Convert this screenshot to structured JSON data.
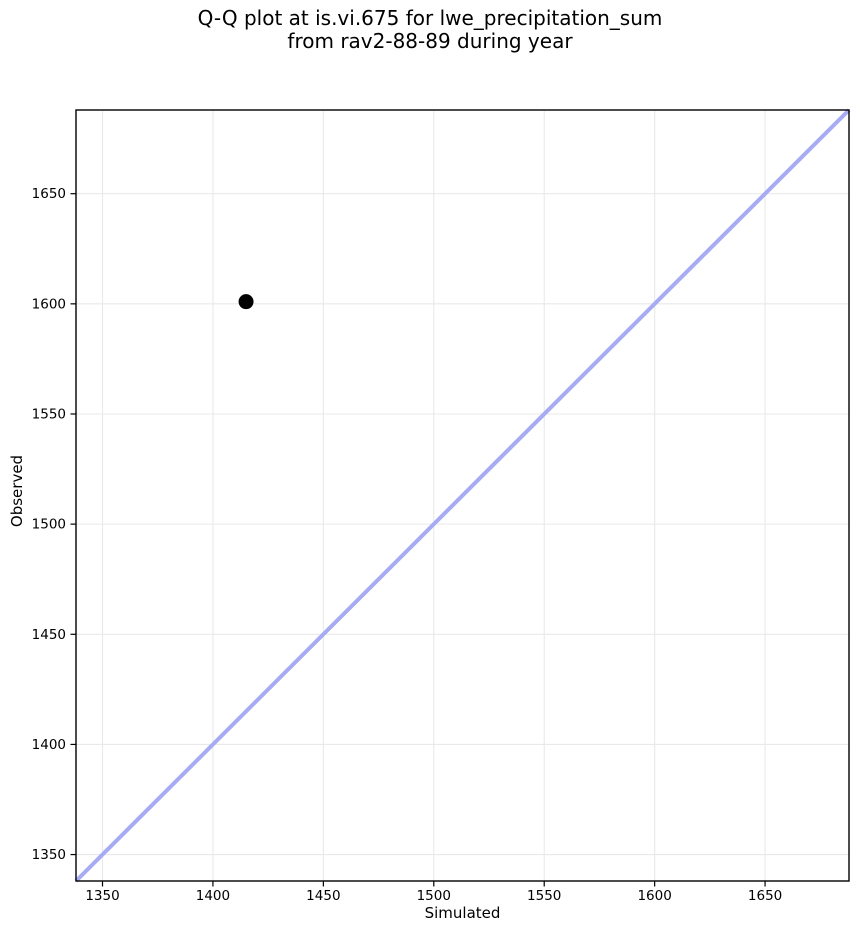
{
  "figure": {
    "title_lines": [
      "Q-Q plot at is.vi.675 for lwe_precipitation_sum",
      "from rav2-88-89 during year"
    ]
  },
  "chart_data": {
    "type": "scatter",
    "title": "Q-Q plot at is.vi.675 for lwe_precipitation_sum\nfrom rav2-88-89 during year",
    "xlabel": "Simulated",
    "ylabel": "Observed",
    "xlim": [
      1338,
      1688
    ],
    "ylim": [
      1338,
      1688
    ],
    "xticks": [
      1350,
      1400,
      1450,
      1500,
      1550,
      1600,
      1650
    ],
    "yticks": [
      1350,
      1400,
      1450,
      1500,
      1550,
      1600,
      1650
    ],
    "grid": true,
    "legend": "none",
    "points": [
      {
        "x": 1415,
        "y": 1601
      }
    ],
    "reference_line": {
      "name": "identity-line",
      "from": [
        1338,
        1338
      ],
      "to": [
        1688,
        1688
      ]
    },
    "colors": {
      "point": "#000000",
      "reference_line": "#a7abf3",
      "grid": "#e9e9e9",
      "spine": "#000000",
      "background": "#ffffff"
    }
  }
}
